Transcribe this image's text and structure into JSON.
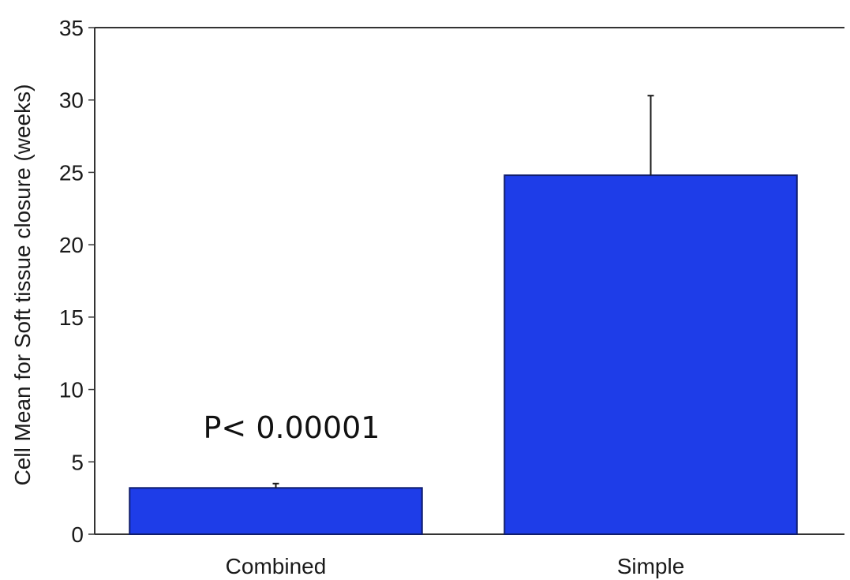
{
  "chart_data": {
    "type": "bar",
    "categories": [
      "Combined",
      "Simple"
    ],
    "values": [
      3.2,
      24.8
    ],
    "error_upper": [
      3.5,
      30.3
    ],
    "title": "",
    "xlabel": "",
    "ylabel": "Cell Mean for Soft tissue closure (weeks)",
    "ylim": [
      0,
      35
    ],
    "yticks": [
      0,
      5,
      10,
      15,
      20,
      25,
      30,
      35
    ],
    "grid": false,
    "bar_color": "#1e3de8",
    "annotation": "P< 0.00001"
  }
}
